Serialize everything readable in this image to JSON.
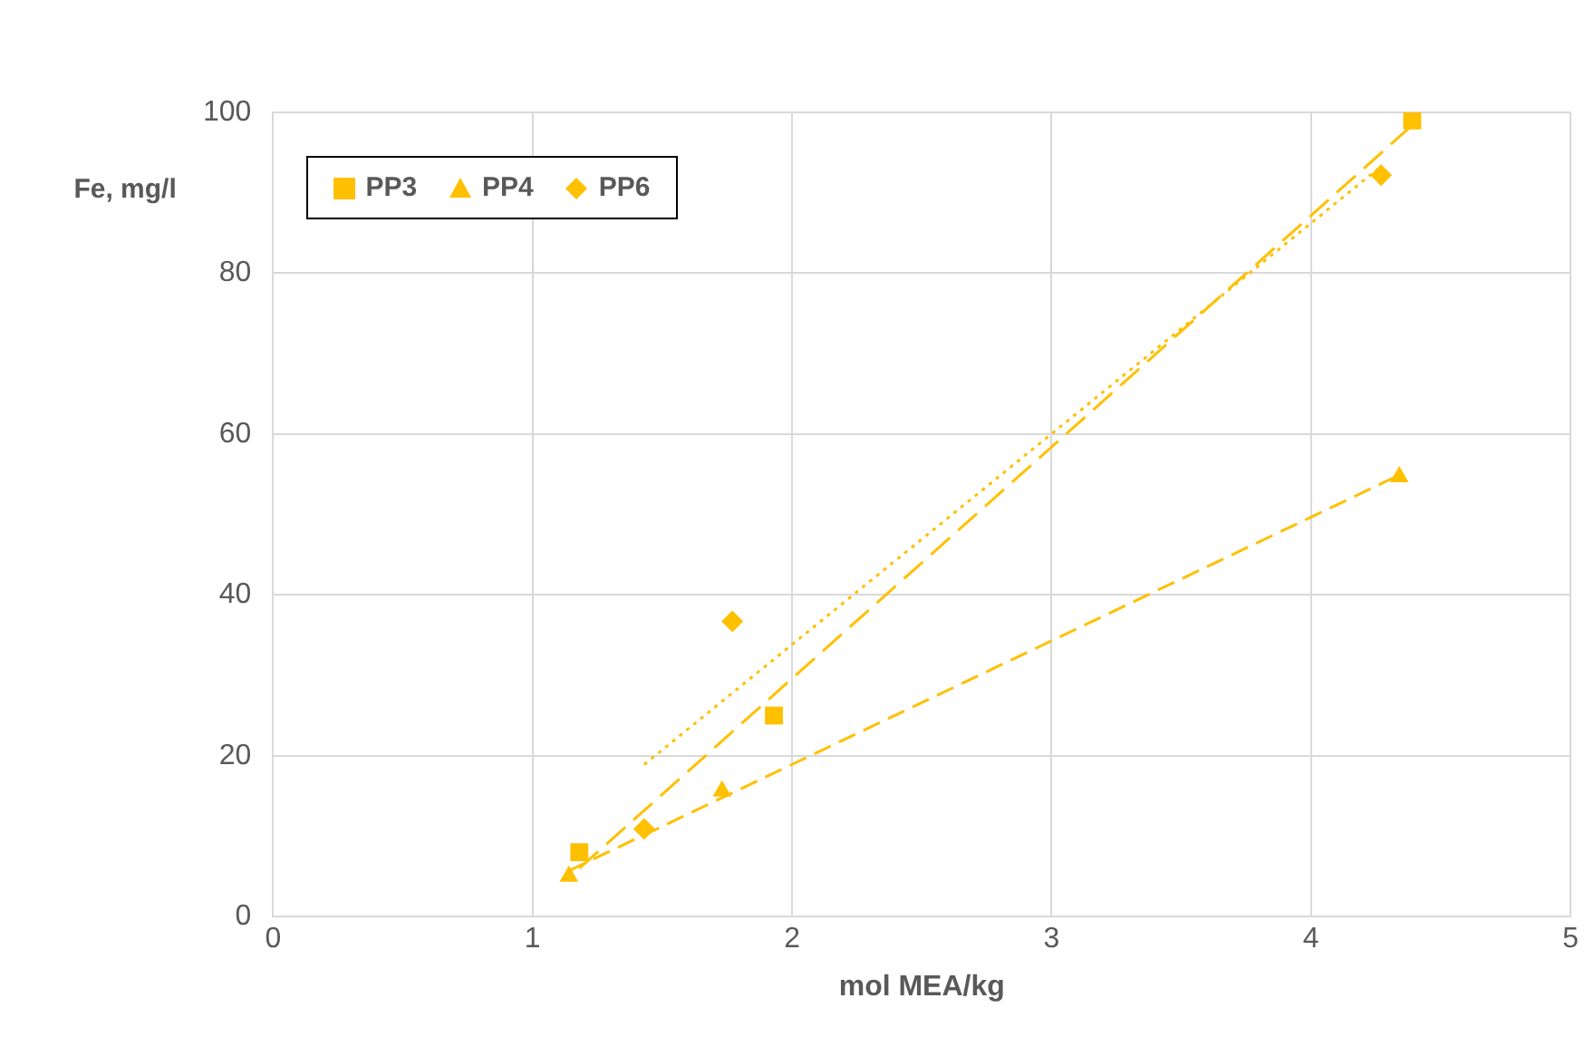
{
  "chart_data": {
    "type": "scatter",
    "xlabel": "mol MEA/kg",
    "ylabel": "Fe, mg/l",
    "xlim": [
      0,
      5
    ],
    "xticks": [
      0,
      1,
      2,
      3,
      4,
      5
    ],
    "ylim": [
      0,
      100
    ],
    "yticks": [
      0,
      20,
      40,
      60,
      80,
      100
    ],
    "grid": true,
    "legend": "top left",
    "series": [
      {
        "name": "PP3",
        "color": "#ffc000",
        "marker": "square",
        "x": [
          1.18,
          1.93,
          4.39
        ],
        "values": [
          8,
          25,
          99
        ]
      },
      {
        "name": "PP4",
        "color": "#ffc000",
        "marker": "triangle",
        "x": [
          1.14,
          1.73,
          4.34
        ],
        "values": [
          5,
          15.6,
          54.7
        ]
      },
      {
        "name": "PP6",
        "color": "#ffc000",
        "marker": "diamond",
        "x": [
          1.43,
          1.77,
          4.27
        ],
        "values": [
          10.9,
          36.7,
          92.2
        ]
      },
      {
        "type": "line",
        "color": "#ffc000",
        "marker": "none",
        "line_style": "dashed",
        "x": [
          1.18,
          4.39
        ],
        "values": [
          6,
          98.4
        ]
      },
      {
        "type": "line",
        "color": "#ffc000",
        "marker": "none",
        "line_style": "dashed",
        "x": [
          1.14,
          4.34
        ],
        "values": [
          5.7,
          54.9
        ]
      },
      {
        "type": "line",
        "color": "#ffc000",
        "marker": "none",
        "line_style": "dotted",
        "x": [
          1.43,
          4.27
        ],
        "values": [
          18.9,
          93.3
        ]
      }
    ]
  }
}
